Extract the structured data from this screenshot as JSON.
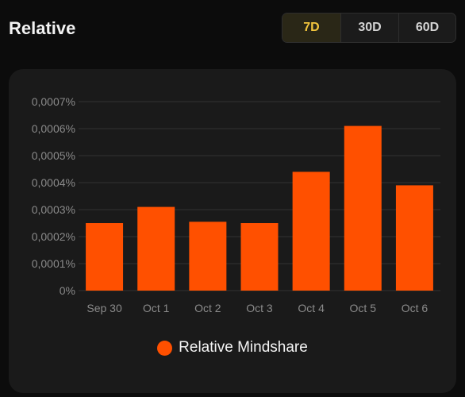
{
  "header": {
    "title": "Relative"
  },
  "range_tabs": [
    {
      "label": "7D",
      "active": true
    },
    {
      "label": "30D",
      "active": false
    },
    {
      "label": "60D",
      "active": false
    }
  ],
  "colors": {
    "bar": "#ff5000",
    "grid": "#333333",
    "tick_text": "#8a8a8a",
    "active_tab_text": "#f2c53d"
  },
  "chart_data": {
    "type": "bar",
    "title": "",
    "xlabel": "",
    "ylabel": "",
    "categories": [
      "Sep 30",
      "Oct 1",
      "Oct 2",
      "Oct 3",
      "Oct 4",
      "Oct 5",
      "Oct 6"
    ],
    "series": [
      {
        "name": "Relative Mindshare",
        "values": [
          0.00025,
          0.00031,
          0.000255,
          0.00025,
          0.00044,
          0.00061,
          0.00039
        ]
      }
    ],
    "ylim": [
      0,
      0.0007
    ],
    "yticks": [
      0,
      0.0001,
      0.0002,
      0.0003,
      0.0004,
      0.0005,
      0.0006,
      0.0007
    ],
    "ytick_labels": [
      "0%",
      "0,0001%",
      "0,0002%",
      "0,0003%",
      "0,0004%",
      "0,0005%",
      "0,0006%",
      "0,0007%"
    ],
    "grid": true,
    "legend_position": "bottom"
  }
}
